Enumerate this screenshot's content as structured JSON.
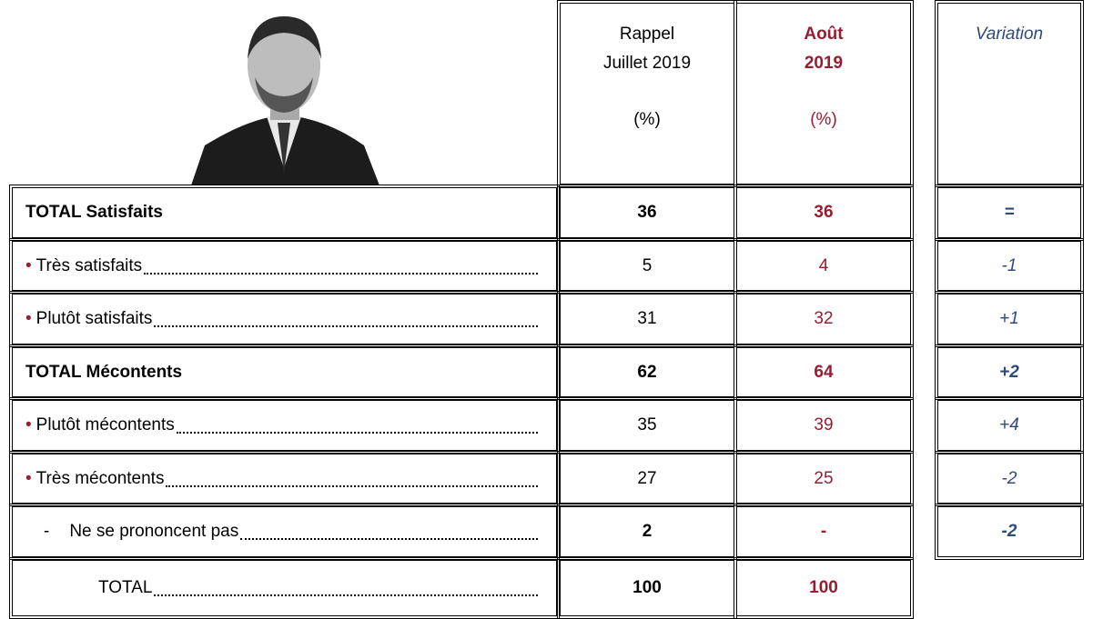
{
  "header": {
    "july": [
      "Rappel",
      "Juillet 2019",
      "(%)"
    ],
    "august": [
      "Août",
      "2019",
      "(%)"
    ],
    "variation": "Variation"
  },
  "rows": [
    {
      "label": "TOTAL Satisfaits",
      "july": "36",
      "august": "36",
      "variation": "="
    },
    {
      "marker": "•",
      "label": "Très satisfaits",
      "july": "5",
      "august": "4",
      "variation": "-1"
    },
    {
      "marker": "•",
      "label": "Plutôt satisfaits",
      "july": "31",
      "august": "32",
      "variation": "+1"
    },
    {
      "label": "TOTAL Mécontents",
      "july": "62",
      "august": "64",
      "variation": "+2"
    },
    {
      "marker": "•",
      "label": "Plutôt mécontents",
      "july": "35",
      "august": "39",
      "variation": "+4"
    },
    {
      "marker": "•",
      "label": "Très mécontents",
      "july": "27",
      "august": "25",
      "variation": "-2"
    },
    {
      "marker": "-",
      "label": "Ne se prononcent pas",
      "july": "2",
      "august": "-",
      "variation": "-2"
    },
    {
      "label": "TOTAL",
      "july": "100",
      "august": "100"
    }
  ]
}
